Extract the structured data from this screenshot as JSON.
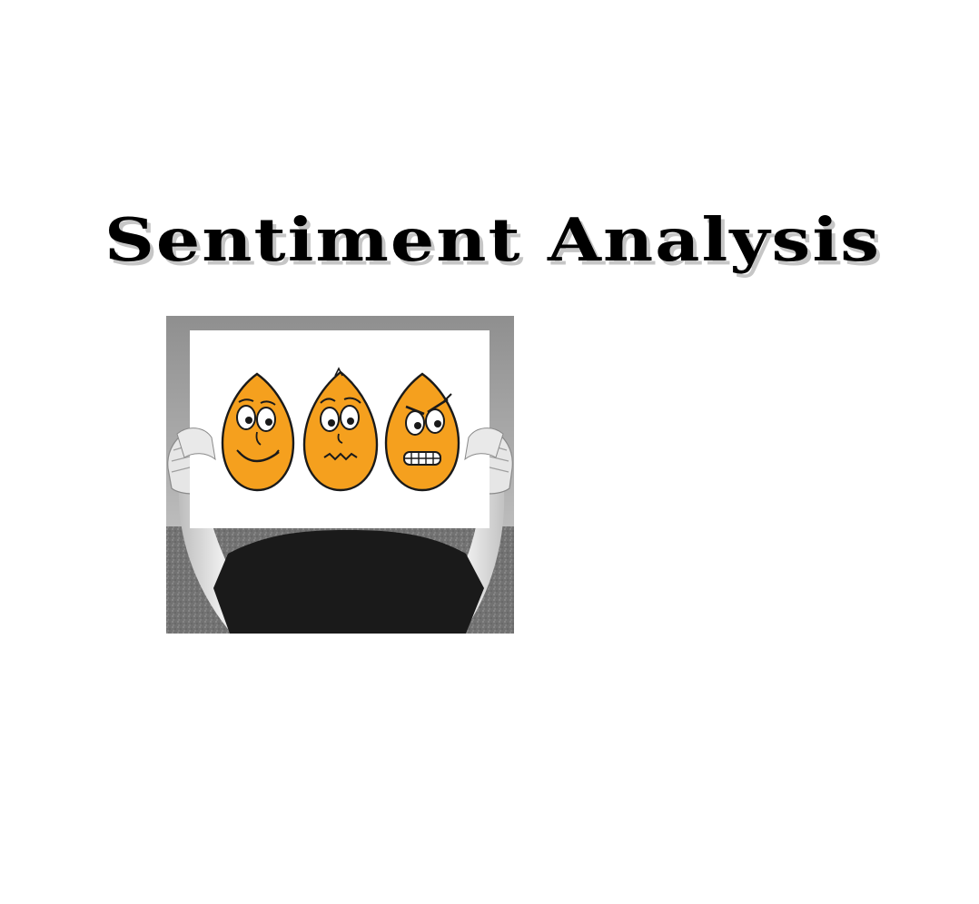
{
  "title": "Sentiment Analysis",
  "colors": {
    "title_text": "#000000",
    "title_shadow": "#c6c6c6",
    "face_fill": "#f5a01e",
    "shirt": "#1a1a1a",
    "background_gray": "#9a9a9a"
  },
  "illustration": {
    "faces": [
      "happy-face-icon",
      "worried-face-icon",
      "angry-face-icon"
    ]
  }
}
